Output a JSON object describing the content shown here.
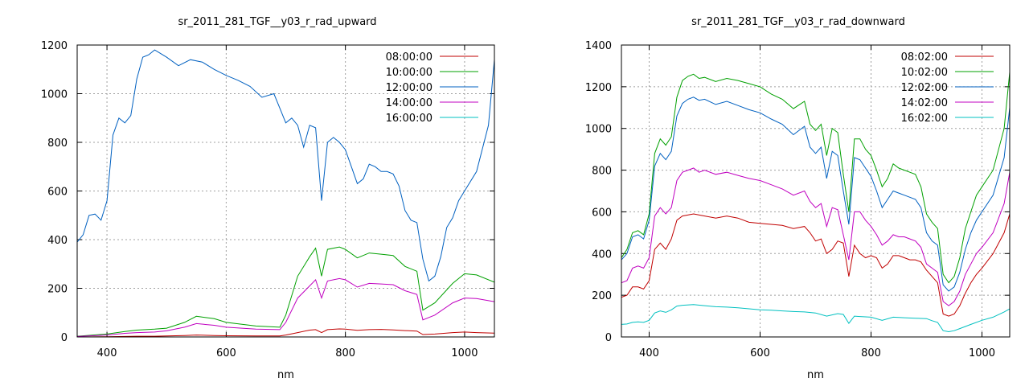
{
  "chart_data": [
    {
      "type": "line",
      "title": "sr_2011_281_TGF__y03_r_rad_upward",
      "xlabel": "nm",
      "ylabel": "",
      "xlim": [
        350,
        1050
      ],
      "ylim": [
        0,
        1200
      ],
      "xticks": [
        400,
        600,
        800,
        1000
      ],
      "yticks": [
        0,
        200,
        400,
        600,
        800,
        1000,
        1200
      ],
      "grid": true,
      "legend_position": "top-right",
      "series": [
        {
          "name": "08:00:00",
          "color": "#c00000",
          "x": [
            350,
            400,
            430,
            450,
            480,
            500,
            530,
            550,
            580,
            600,
            650,
            690,
            700,
            720,
            740,
            750,
            760,
            770,
            790,
            800,
            820,
            840,
            860,
            880,
            900,
            920,
            930,
            950,
            980,
            1000,
            1020,
            1050
          ],
          "y": [
            0,
            1,
            2,
            3,
            3,
            4,
            6,
            8,
            6,
            5,
            4,
            4,
            8,
            18,
            28,
            30,
            18,
            30,
            33,
            32,
            27,
            30,
            31,
            29,
            26,
            24,
            10,
            12,
            18,
            20,
            18,
            16
          ]
        },
        {
          "name": "10:00:00",
          "color": "#00a000",
          "x": [
            350,
            400,
            430,
            450,
            480,
            500,
            530,
            550,
            580,
            600,
            650,
            690,
            700,
            720,
            740,
            750,
            760,
            770,
            790,
            800,
            820,
            840,
            860,
            880,
            900,
            920,
            930,
            950,
            980,
            1000,
            1020,
            1050
          ],
          "y": [
            3,
            12,
            22,
            28,
            32,
            36,
            60,
            85,
            75,
            60,
            45,
            40,
            90,
            250,
            330,
            365,
            250,
            360,
            370,
            360,
            325,
            345,
            340,
            335,
            290,
            270,
            110,
            140,
            220,
            260,
            255,
            225
          ]
        },
        {
          "name": "12:00:00",
          "color": "#0060c0",
          "x": [
            350,
            360,
            370,
            380,
            390,
            400,
            410,
            420,
            430,
            440,
            450,
            460,
            470,
            480,
            490,
            500,
            520,
            540,
            560,
            580,
            600,
            620,
            640,
            660,
            680,
            690,
            700,
            710,
            720,
            730,
            740,
            750,
            760,
            770,
            780,
            790,
            800,
            810,
            820,
            830,
            840,
            850,
            860,
            870,
            880,
            890,
            900,
            910,
            920,
            930,
            940,
            950,
            960,
            970,
            980,
            990,
            1000,
            1020,
            1040,
            1050
          ],
          "y": [
            390,
            420,
            500,
            505,
            480,
            560,
            830,
            900,
            880,
            910,
            1060,
            1150,
            1160,
            1180,
            1165,
            1150,
            1115,
            1140,
            1130,
            1100,
            1075,
            1055,
            1030,
            985,
            1000,
            940,
            880,
            900,
            870,
            780,
            870,
            860,
            560,
            800,
            820,
            800,
            770,
            700,
            630,
            650,
            710,
            700,
            680,
            680,
            670,
            620,
            520,
            480,
            470,
            320,
            230,
            250,
            330,
            450,
            490,
            560,
            600,
            680,
            870,
            1140
          ]
        },
        {
          "name": "14:00:00",
          "color": "#c000c0",
          "x": [
            350,
            400,
            430,
            450,
            480,
            500,
            530,
            550,
            580,
            600,
            650,
            690,
            700,
            720,
            740,
            750,
            760,
            770,
            790,
            800,
            820,
            840,
            860,
            880,
            900,
            920,
            930,
            950,
            980,
            1000,
            1020,
            1050
          ],
          "y": [
            2,
            8,
            15,
            18,
            20,
            25,
            40,
            55,
            48,
            40,
            32,
            30,
            60,
            160,
            210,
            235,
            160,
            230,
            240,
            235,
            205,
            220,
            218,
            215,
            190,
            175,
            70,
            90,
            140,
            160,
            158,
            145
          ]
        },
        {
          "name": "16:00:00",
          "color": "#00c0c0",
          "x": [
            350,
            400,
            450,
            500,
            550,
            600,
            650,
            700,
            750,
            800,
            850,
            900,
            950,
            1000,
            1050
          ],
          "y": [
            0,
            0,
            0,
            0,
            0,
            0,
            0,
            0,
            0,
            0,
            0,
            0,
            0,
            0,
            0
          ]
        }
      ]
    },
    {
      "type": "line",
      "title": "sr_2011_281_TGF__y03_r_rad_downward",
      "xlabel": "nm",
      "ylabel": "",
      "xlim": [
        350,
        1050
      ],
      "ylim": [
        0,
        1400
      ],
      "xticks": [
        400,
        600,
        800,
        1000
      ],
      "yticks": [
        0,
        200,
        400,
        600,
        800,
        1000,
        1200,
        1400
      ],
      "grid": true,
      "legend_position": "top-right",
      "series": [
        {
          "name": "08:02:00",
          "color": "#c00000",
          "x": [
            350,
            360,
            370,
            380,
            390,
            400,
            410,
            420,
            430,
            440,
            450,
            460,
            480,
            500,
            520,
            540,
            560,
            580,
            600,
            620,
            640,
            660,
            680,
            690,
            700,
            710,
            720,
            730,
            740,
            750,
            760,
            770,
            780,
            790,
            800,
            810,
            820,
            830,
            840,
            850,
            860,
            870,
            880,
            890,
            900,
            910,
            920,
            930,
            940,
            950,
            960,
            970,
            980,
            990,
            1000,
            1020,
            1040,
            1050
          ],
          "y": [
            190,
            200,
            240,
            240,
            230,
            270,
            420,
            450,
            420,
            470,
            560,
            580,
            590,
            580,
            570,
            580,
            570,
            550,
            545,
            540,
            535,
            520,
            530,
            500,
            460,
            470,
            400,
            420,
            460,
            450,
            290,
            440,
            400,
            380,
            390,
            380,
            330,
            350,
            390,
            390,
            380,
            370,
            370,
            360,
            320,
            290,
            260,
            110,
            100,
            110,
            150,
            210,
            260,
            300,
            330,
            400,
            500,
            590
          ]
        },
        {
          "name": "10:02:00",
          "color": "#00a000",
          "x": [
            350,
            360,
            370,
            380,
            390,
            400,
            410,
            420,
            430,
            440,
            450,
            460,
            470,
            480,
            490,
            500,
            520,
            540,
            560,
            580,
            600,
            620,
            640,
            660,
            680,
            690,
            700,
            710,
            720,
            730,
            740,
            750,
            760,
            770,
            780,
            790,
            800,
            810,
            820,
            830,
            840,
            850,
            860,
            870,
            880,
            890,
            900,
            910,
            920,
            930,
            940,
            950,
            960,
            970,
            980,
            990,
            1000,
            1020,
            1040,
            1050
          ],
          "y": [
            380,
            420,
            500,
            510,
            490,
            590,
            880,
            950,
            920,
            960,
            1150,
            1230,
            1250,
            1260,
            1240,
            1245,
            1225,
            1240,
            1230,
            1215,
            1200,
            1165,
            1140,
            1095,
            1130,
            1020,
            990,
            1020,
            870,
            1000,
            980,
            780,
            600,
            950,
            950,
            900,
            870,
            800,
            720,
            760,
            830,
            810,
            800,
            790,
            780,
            720,
            590,
            550,
            520,
            300,
            260,
            290,
            380,
            520,
            600,
            680,
            720,
            800,
            1000,
            1270
          ]
        },
        {
          "name": "12:02:00",
          "color": "#0060c0",
          "x": [
            350,
            360,
            370,
            380,
            390,
            400,
            410,
            420,
            430,
            440,
            450,
            460,
            470,
            480,
            490,
            500,
            520,
            540,
            560,
            580,
            600,
            620,
            640,
            660,
            680,
            690,
            700,
            710,
            720,
            730,
            740,
            750,
            760,
            770,
            780,
            790,
            800,
            810,
            820,
            830,
            840,
            850,
            860,
            870,
            880,
            890,
            900,
            910,
            920,
            930,
            940,
            950,
            960,
            970,
            980,
            990,
            1000,
            1020,
            1040,
            1050
          ],
          "y": [
            370,
            400,
            480,
            490,
            470,
            560,
            820,
            880,
            850,
            890,
            1060,
            1120,
            1140,
            1150,
            1135,
            1140,
            1115,
            1130,
            1110,
            1090,
            1075,
            1045,
            1020,
            970,
            1010,
            910,
            880,
            910,
            760,
            890,
            870,
            700,
            540,
            860,
            850,
            810,
            770,
            700,
            620,
            660,
            700,
            690,
            680,
            670,
            660,
            620,
            500,
            460,
            440,
            250,
            220,
            240,
            310,
            420,
            500,
            560,
            600,
            680,
            860,
            1100
          ]
        },
        {
          "name": "14:02:00",
          "color": "#c000c0",
          "x": [
            350,
            360,
            370,
            380,
            390,
            400,
            410,
            420,
            430,
            440,
            450,
            460,
            470,
            480,
            490,
            500,
            520,
            540,
            560,
            580,
            600,
            620,
            640,
            660,
            680,
            690,
            700,
            710,
            720,
            730,
            740,
            750,
            760,
            770,
            780,
            790,
            800,
            810,
            820,
            830,
            840,
            850,
            860,
            870,
            880,
            890,
            900,
            910,
            920,
            930,
            940,
            950,
            960,
            970,
            980,
            990,
            1000,
            1020,
            1040,
            1050
          ],
          "y": [
            260,
            270,
            330,
            340,
            330,
            380,
            580,
            620,
            590,
            620,
            750,
            790,
            800,
            810,
            790,
            800,
            780,
            790,
            775,
            760,
            750,
            730,
            710,
            680,
            700,
            650,
            620,
            640,
            530,
            620,
            610,
            490,
            370,
            600,
            600,
            560,
            530,
            490,
            440,
            460,
            490,
            480,
            480,
            470,
            460,
            430,
            350,
            330,
            310,
            170,
            150,
            170,
            220,
            300,
            350,
            400,
            430,
            500,
            640,
            790
          ]
        },
        {
          "name": "16:02:00",
          "color": "#00c0c0",
          "x": [
            350,
            360,
            370,
            380,
            390,
            400,
            410,
            420,
            430,
            440,
            450,
            460,
            480,
            500,
            520,
            540,
            560,
            580,
            600,
            620,
            640,
            660,
            680,
            700,
            720,
            740,
            750,
            760,
            770,
            780,
            800,
            820,
            840,
            860,
            880,
            900,
            910,
            920,
            930,
            940,
            950,
            960,
            980,
            1000,
            1020,
            1040,
            1050
          ],
          "y": [
            60,
            62,
            70,
            72,
            70,
            80,
            115,
            125,
            118,
            130,
            148,
            152,
            155,
            150,
            145,
            143,
            140,
            135,
            130,
            128,
            125,
            122,
            120,
            115,
            100,
            112,
            108,
            65,
            100,
            98,
            95,
            80,
            95,
            92,
            90,
            88,
            78,
            70,
            30,
            25,
            30,
            40,
            60,
            80,
            95,
            120,
            135
          ]
        }
      ]
    }
  ]
}
